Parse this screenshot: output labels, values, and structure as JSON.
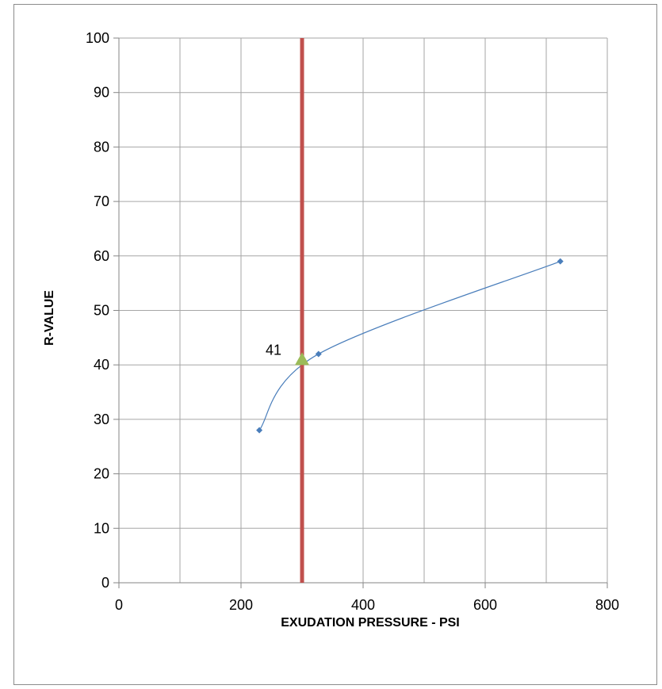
{
  "chart_data": {
    "type": "scatter",
    "title": "",
    "xlabel": "EXUDATION PRESSURE - PSI",
    "ylabel": "R-VALUE",
    "xlim": [
      0,
      800
    ],
    "ylim": [
      0,
      100
    ],
    "xticks": [
      0,
      200,
      400,
      600,
      800
    ],
    "yticks": [
      0,
      10,
      20,
      30,
      40,
      50,
      60,
      70,
      80,
      90,
      100
    ],
    "x_minor_gridlines": [
      100,
      300,
      500,
      700
    ],
    "grid": true,
    "legend": "none",
    "series": [
      {
        "type": "scatter-smooth-line",
        "x": [
          230,
          327,
          723
        ],
        "y": [
          28,
          42,
          59
        ],
        "color": "#4a7ebb",
        "marker": "diamond"
      },
      {
        "type": "vertical-line",
        "x": [
          300,
          300
        ],
        "y": [
          0,
          100
        ],
        "color": "#c0504d"
      },
      {
        "type": "point",
        "x": [
          300
        ],
        "y": [
          41
        ],
        "color": "#9bbb59",
        "marker": "triangle",
        "data_label": "41"
      }
    ]
  }
}
